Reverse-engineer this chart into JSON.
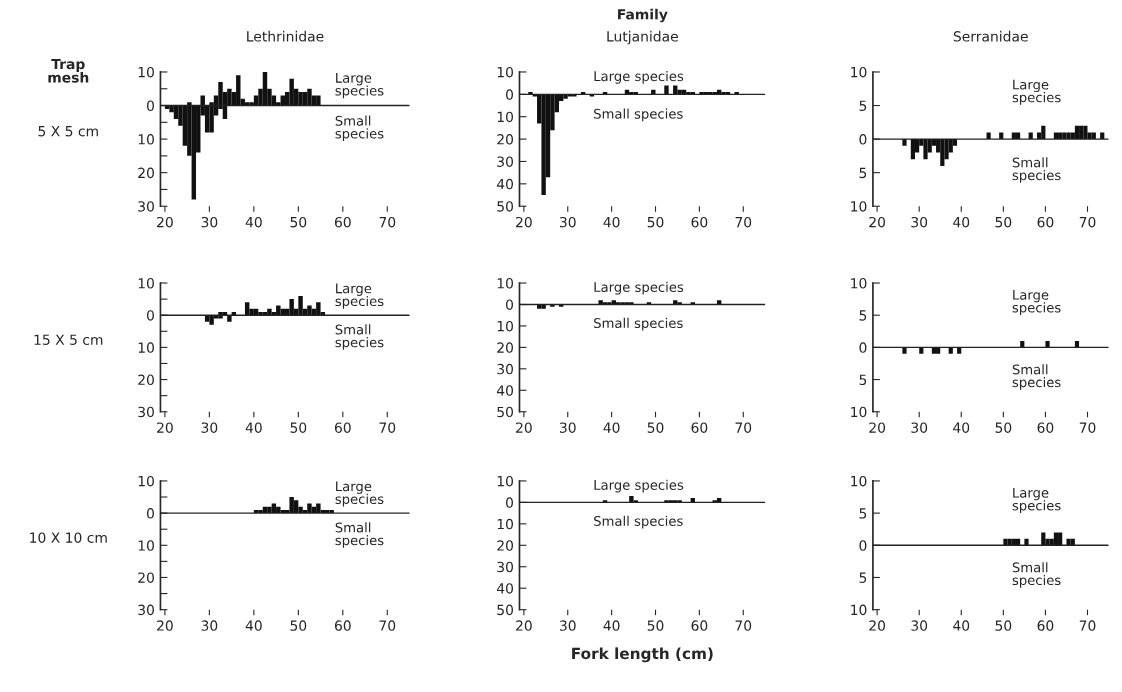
{
  "chart_data": [
    {
      "type": "bar",
      "title": "Lethrinidae",
      "ylabel": "5 X 5 cm",
      "annotations": [
        "Large\nspecies",
        "Small\nspecies",
        "Trap\nmesh"
      ],
      "xlim": [
        19,
        75
      ],
      "xticks": [
        20,
        30,
        40,
        50,
        60,
        70
      ],
      "ylim": [
        -30,
        10
      ],
      "yticks": [
        10,
        {
          "value": 5,
          "label": null
        },
        0,
        {
          "value": -5,
          "label": null
        },
        {
          "value": -10,
          "label": "10"
        },
        {
          "value": -15,
          "label": null
        },
        {
          "value": -20,
          "label": "20"
        },
        {
          "value": -25,
          "label": null
        },
        {
          "value": -30,
          "label": "30"
        }
      ],
      "ref_lines": [
        {
          "axis": "y",
          "value": 0
        }
      ],
      "series": [
        {
          "color": "#111111",
          "x": [
            20.5,
            21.5,
            22.5,
            23.5,
            24.5,
            25.5,
            26.5,
            27.5,
            28.5,
            29.5,
            30.5,
            31.5,
            32.5,
            33.5,
            34.5,
            35.5,
            36.5,
            37.5,
            38.5,
            39.5,
            40.5,
            41.5,
            42.5,
            43.5,
            44.5,
            45.5,
            46.5,
            47.5,
            48.5,
            49.5,
            50.5,
            51.5,
            52.5,
            53.5,
            54.5
          ],
          "base": [
            0,
            0,
            0,
            0,
            0,
            -15,
            0,
            0,
            -3,
            0,
            -8,
            -3,
            -1,
            -4,
            0,
            0,
            0,
            0,
            0,
            0,
            0,
            0,
            0,
            0,
            0,
            0,
            0,
            0,
            0,
            0,
            0,
            0,
            0,
            0,
            0
          ],
          "values": [
            -1,
            -2,
            -4,
            -6,
            -12,
            16,
            -28,
            -14,
            6,
            -8,
            9,
            6,
            8,
            8,
            5,
            4,
            9,
            2,
            1,
            1,
            3,
            5,
            10,
            5,
            3,
            1,
            3,
            4,
            8,
            5,
            4,
            4,
            5,
            3,
            3
          ]
        }
      ]
    },
    {
      "type": "bar",
      "title": "Lutjanidae",
      "annotations": [
        "Large species",
        "Small species",
        "Family"
      ],
      "xlim": [
        19,
        75
      ],
      "xticks": [
        20,
        30,
        40,
        50,
        60,
        70
      ],
      "ylim": [
        -50,
        10
      ],
      "yticks": [
        10,
        0,
        {
          "value": -10,
          "label": "10"
        },
        {
          "value": -20,
          "label": "20"
        },
        {
          "value": -30,
          "label": "30"
        },
        {
          "value": -40,
          "label": "40"
        },
        {
          "value": -50,
          "label": "50"
        }
      ],
      "ref_lines": [
        {
          "axis": "y",
          "value": 0
        }
      ],
      "series": [
        {
          "color": "#111111",
          "x": [
            21.5,
            22.5,
            23.5,
            24.5,
            25.5,
            26.5,
            27.5,
            28.5,
            29.5,
            30.5,
            31.5,
            33.5,
            35.5,
            38.5,
            43.5,
            44.5,
            45.5,
            49.5,
            52.5,
            54.5,
            55.5,
            56.5,
            57.5,
            58.5,
            60.5,
            61.5,
            62.5,
            63.5,
            64.5,
            65.5,
            66.5,
            68.5
          ],
          "values": [
            1,
            -1,
            -13,
            -45,
            -37,
            -16,
            -8,
            -3,
            -2,
            -1,
            -1,
            1,
            -1,
            1,
            2,
            1,
            1,
            2,
            4,
            4,
            2,
            2,
            1,
            1,
            1,
            1,
            1,
            1,
            2,
            1,
            1,
            1
          ]
        }
      ]
    },
    {
      "type": "bar",
      "title": "Serranidae",
      "annotations": [
        "Large\nspecies",
        "Small\nspecies"
      ],
      "xlim": [
        19,
        75
      ],
      "xticks": [
        20,
        30,
        40,
        50,
        60,
        70
      ],
      "ylim": [
        -10,
        10
      ],
      "yticks": [
        10,
        5,
        0,
        {
          "value": -5,
          "label": "5"
        },
        {
          "value": -10,
          "label": "10"
        }
      ],
      "ref_lines": [
        {
          "axis": "y",
          "value": 0
        }
      ],
      "series": [
        {
          "color": "#111111",
          "x": [
            26.5,
            28.5,
            29.5,
            30.5,
            31.5,
            32.5,
            33.5,
            34.5,
            35.5,
            36.5,
            37.5,
            38.5,
            46.5,
            49.5,
            52.5,
            53.5,
            56.5,
            58.5,
            59.5,
            62.5,
            63.5,
            64.5,
            65.5,
            66.5,
            67.5,
            68.5,
            69.5,
            70.5,
            71.5,
            73.5
          ],
          "values": [
            -1,
            -3,
            -2,
            -1,
            -3,
            -2,
            -1,
            -2,
            -4,
            -3,
            -2,
            -1,
            1,
            1,
            1,
            1,
            1,
            1,
            2,
            1,
            1,
            1,
            1,
            1,
            2,
            2,
            2,
            1,
            1,
            1
          ]
        }
      ]
    },
    {
      "type": "bar",
      "ylabel": "15 X 5 cm",
      "annotations": [
        "Large\nspecies",
        "Small\nspecies"
      ],
      "xlim": [
        19,
        75
      ],
      "xticks": [
        20,
        30,
        40,
        50,
        60,
        70
      ],
      "ylim": [
        -30,
        10
      ],
      "yticks": [
        10,
        {
          "value": 5,
          "label": null
        },
        0,
        {
          "value": -5,
          "label": null
        },
        {
          "value": -10,
          "label": "10"
        },
        {
          "value": -15,
          "label": null
        },
        {
          "value": -20,
          "label": "20"
        },
        {
          "value": -25,
          "label": null
        },
        {
          "value": -30,
          "label": "30"
        }
      ],
      "ref_lines": [
        {
          "axis": "y",
          "value": 0
        }
      ],
      "series": [
        {
          "color": "#111111",
          "x": [
            29.5,
            30.5,
            31.5,
            32.5,
            33.5,
            34.5,
            35.5,
            38.5,
            39.5,
            40.5,
            41.5,
            42.5,
            43.5,
            44.5,
            45.5,
            46.5,
            47.5,
            48.5,
            49.5,
            50.5,
            51.5,
            52.5,
            53.5,
            54.5,
            55.5
          ],
          "base": [
            0,
            0,
            0,
            -1,
            0,
            0,
            0,
            0,
            0,
            0,
            0,
            0,
            0,
            0,
            0,
            0,
            0,
            0,
            0,
            0,
            0,
            0,
            0,
            0,
            0
          ],
          "values": [
            -2,
            -3,
            -1,
            2,
            1,
            -2,
            1,
            4,
            2,
            2,
            1,
            1,
            2,
            1,
            3,
            2,
            2,
            5,
            2,
            6,
            2,
            3,
            2,
            4,
            1
          ]
        }
      ]
    },
    {
      "type": "bar",
      "annotations": [
        "Large species",
        "Small species"
      ],
      "xlim": [
        19,
        75
      ],
      "xticks": [
        20,
        30,
        40,
        50,
        60,
        70
      ],
      "ylim": [
        -50,
        10
      ],
      "yticks": [
        10,
        0,
        {
          "value": -10,
          "label": "10"
        },
        {
          "value": -20,
          "label": "20"
        },
        {
          "value": -30,
          "label": "30"
        },
        {
          "value": -40,
          "label": "40"
        },
        {
          "value": -50,
          "label": "50"
        }
      ],
      "ref_lines": [
        {
          "axis": "y",
          "value": 0
        }
      ],
      "series": [
        {
          "color": "#111111",
          "x": [
            23.5,
            24.5,
            26.5,
            28.5,
            37.5,
            38.5,
            39.5,
            40.5,
            41.5,
            42.5,
            43.5,
            44.5,
            48.5,
            54.5,
            55.5,
            58.5,
            64.5
          ],
          "values": [
            -2,
            -2,
            -1,
            -1,
            2,
            1,
            1,
            2,
            1,
            1,
            1,
            1,
            1,
            2,
            1,
            1,
            2
          ]
        }
      ]
    },
    {
      "type": "bar",
      "annotations": [
        "Large\nspecies",
        "Small\nspecies"
      ],
      "xlim": [
        19,
        75
      ],
      "xticks": [
        20,
        30,
        40,
        50,
        60,
        70
      ],
      "ylim": [
        -10,
        10
      ],
      "yticks": [
        10,
        5,
        0,
        {
          "value": -5,
          "label": "5"
        },
        {
          "value": -10,
          "label": "10"
        }
      ],
      "ref_lines": [
        {
          "axis": "y",
          "value": 0
        }
      ],
      "series": [
        {
          "color": "#111111",
          "x": [
            26.5,
            30.5,
            33.5,
            34.5,
            37.5,
            39.5,
            54.5,
            60.5,
            67.5
          ],
          "values": [
            -1,
            -1,
            -1,
            -1,
            -1,
            -1,
            1,
            1,
            1
          ]
        }
      ]
    },
    {
      "type": "bar",
      "ylabel": "10 X 10 cm",
      "annotations": [
        "Large\nspecies",
        "Small\nspecies"
      ],
      "xlim": [
        19,
        75
      ],
      "xticks": [
        20,
        30,
        40,
        50,
        60,
        70
      ],
      "ylim": [
        -30,
        10
      ],
      "yticks": [
        10,
        {
          "value": 5,
          "label": null
        },
        0,
        {
          "value": -5,
          "label": null
        },
        {
          "value": -10,
          "label": "10"
        },
        {
          "value": -15,
          "label": null
        },
        {
          "value": -20,
          "label": "20"
        },
        {
          "value": -25,
          "label": null
        },
        {
          "value": -30,
          "label": "30"
        }
      ],
      "ref_lines": [
        {
          "axis": "y",
          "value": 0
        }
      ],
      "series": [
        {
          "color": "#111111",
          "x": [
            40.5,
            41.5,
            42.5,
            43.5,
            44.5,
            45.5,
            46.5,
            47.5,
            48.5,
            49.5,
            50.5,
            51.5,
            52.5,
            53.5,
            54.5,
            55.5,
            56.5,
            57.5
          ],
          "values": [
            1,
            1,
            2,
            2,
            3,
            2,
            1,
            1,
            5,
            4,
            2,
            1,
            3,
            2,
            3,
            1,
            1,
            1
          ]
        }
      ]
    },
    {
      "type": "bar",
      "xlabel": "Fork length (cm)",
      "annotations": [
        "Large species",
        "Small species"
      ],
      "xlim": [
        19,
        75
      ],
      "xticks": [
        20,
        30,
        40,
        50,
        60,
        70
      ],
      "ylim": [
        -50,
        10
      ],
      "yticks": [
        10,
        0,
        {
          "value": -10,
          "label": "10"
        },
        {
          "value": -20,
          "label": "20"
        },
        {
          "value": -30,
          "label": "30"
        },
        {
          "value": -40,
          "label": "40"
        },
        {
          "value": -50,
          "label": "50"
        }
      ],
      "ref_lines": [
        {
          "axis": "y",
          "value": 0
        }
      ],
      "series": [
        {
          "color": "#111111",
          "x": [
            38.5,
            44.5,
            45.5,
            52.5,
            53.5,
            54.5,
            55.5,
            58.5,
            63.5,
            64.5
          ],
          "values": [
            1,
            3,
            1,
            1,
            1,
            1,
            1,
            2,
            1,
            2
          ]
        }
      ]
    },
    {
      "type": "bar",
      "annotations": [
        "Large\nspecies",
        "Small\nspecies"
      ],
      "xlim": [
        19,
        75
      ],
      "xticks": [
        20,
        30,
        40,
        50,
        60,
        70
      ],
      "ylim": [
        -10,
        10
      ],
      "yticks": [
        10,
        5,
        0,
        {
          "value": -5,
          "label": "5"
        },
        {
          "value": -10,
          "label": "10"
        }
      ],
      "ref_lines": [
        {
          "axis": "y",
          "value": 0
        }
      ],
      "series": [
        {
          "color": "#111111",
          "x": [
            50.5,
            51.5,
            52.5,
            53.5,
            55.5,
            59.5,
            60.5,
            61.5,
            62.5,
            63.5,
            65.5,
            66.5
          ],
          "values": [
            1,
            1,
            1,
            1,
            1,
            2,
            1,
            1,
            2,
            2,
            1,
            1
          ]
        }
      ]
    }
  ]
}
